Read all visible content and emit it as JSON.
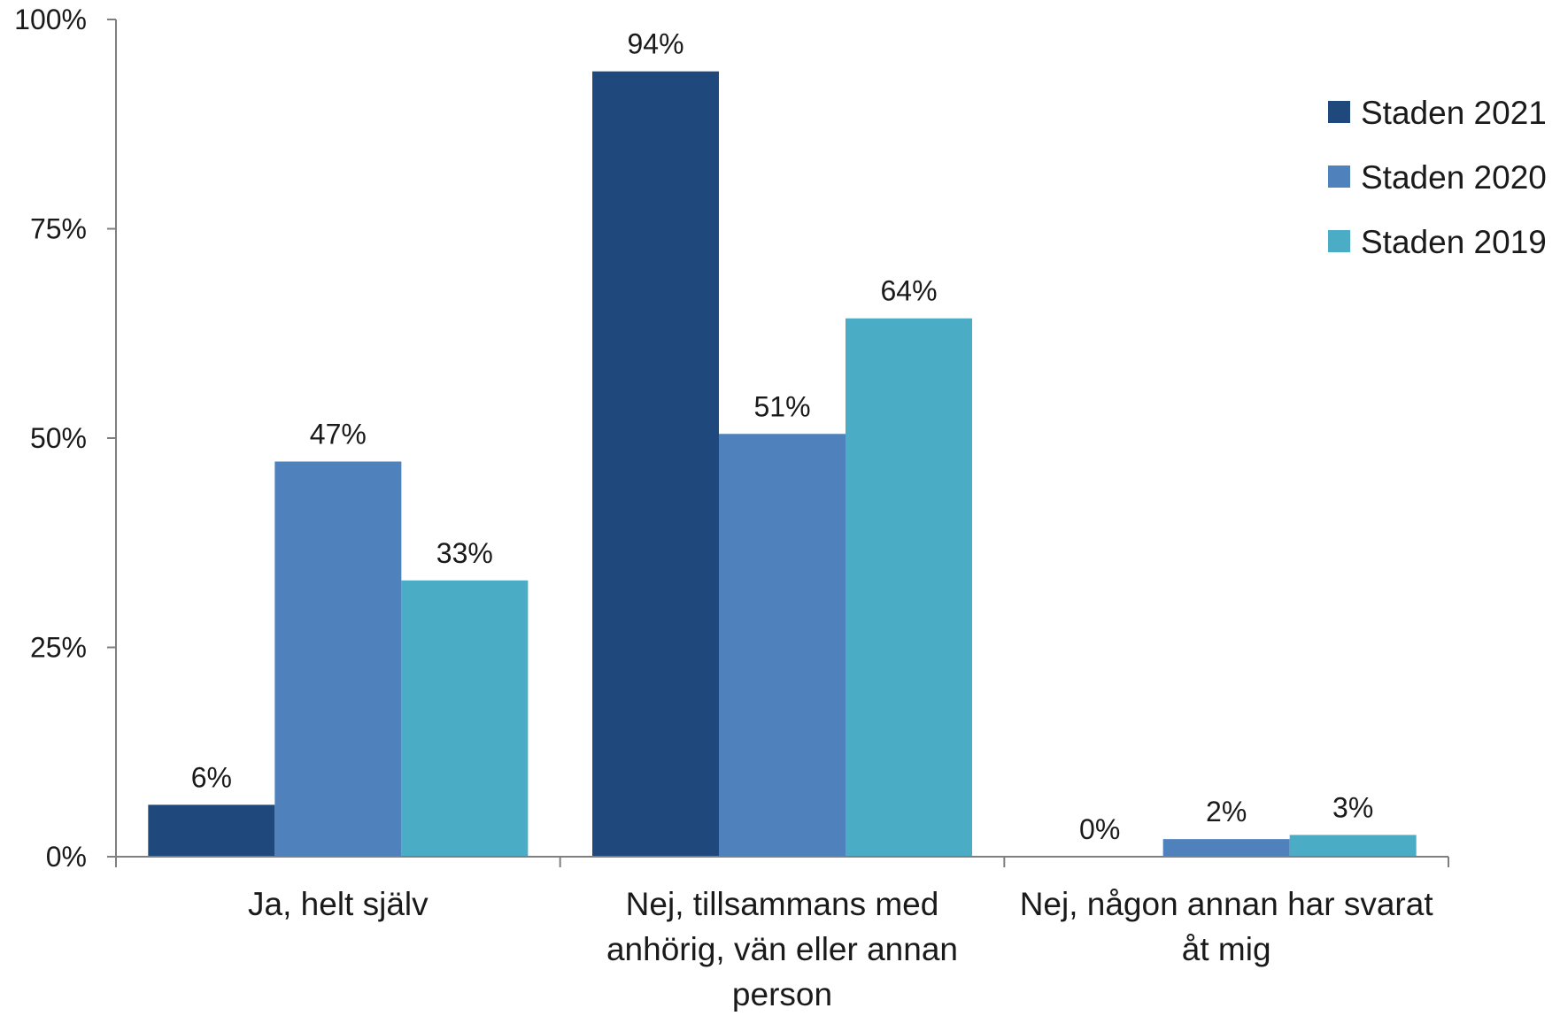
{
  "chart_data": {
    "type": "bar",
    "title": "",
    "xlabel": "",
    "ylabel": "",
    "ylim": [
      0,
      100
    ],
    "y_ticks": [
      "0%",
      "25%",
      "50%",
      "75%",
      "100%"
    ],
    "y_tick_values": [
      0,
      25,
      50,
      75,
      100
    ],
    "grid": false,
    "legend_position": "right",
    "categories": [
      [
        "Ja, helt själv"
      ],
      [
        "Nej, tillsammans med",
        "anhörig, vän eller annan",
        "person"
      ],
      [
        "Nej, någon annan har svarat",
        "åt mig"
      ]
    ],
    "series": [
      {
        "name": "Staden 2021",
        "color": "#1F497D",
        "values": [
          6.2,
          93.8,
          0
        ],
        "labels": [
          "6%",
          "94%",
          "0%"
        ]
      },
      {
        "name": "Staden 2020",
        "color": "#4F81BD",
        "values": [
          47.2,
          50.5,
          2.1
        ],
        "labels": [
          "47%",
          "51%",
          "2%"
        ]
      },
      {
        "name": "Staden 2019",
        "color": "#4BACC6",
        "values": [
          33,
          64.3,
          2.6
        ],
        "labels": [
          "33%",
          "64%",
          "3%"
        ]
      }
    ]
  }
}
